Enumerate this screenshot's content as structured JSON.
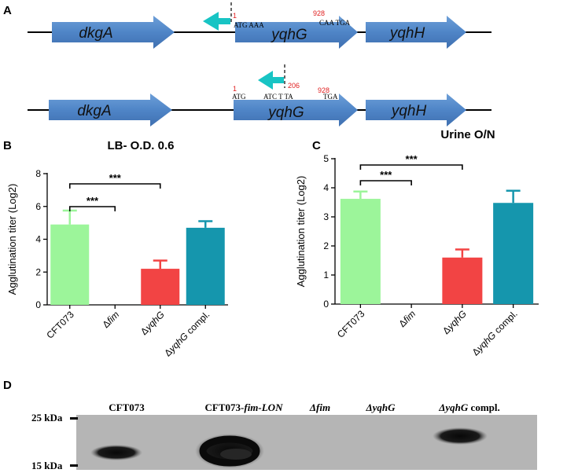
{
  "colors": {
    "gene_arrow": "#4f85c7",
    "cyan_arrow": "#18c4c4",
    "bar_cft073": "#9cf59a",
    "bar_fim": "#ffffff",
    "bar_yqhg": "#f24444",
    "bar_compl": "#1596ad",
    "site_number": "#e02020"
  },
  "panelA": {
    "label": "A",
    "genes": [
      "dkgA",
      "yqhG",
      "yqhH"
    ],
    "row1": {
      "pos_start": "1",
      "pos_end": "928",
      "seq_start": "ATG AAA",
      "seq_end": "CAA TGA"
    },
    "row2": {
      "pos_start": "1",
      "pos_mid": "206",
      "pos_end": "928",
      "seq_start": "ATG",
      "seq_mid": "ATC T TA",
      "seq_end": "TGA"
    }
  },
  "chart_data": [
    {
      "panel": "B",
      "type": "bar",
      "title": "LB- O.D. 0.6",
      "ylabel": "Agglutination titer (Log2)",
      "xlabel": "",
      "ylim": [
        0,
        8
      ],
      "yticks": [
        "0",
        "2",
        "4",
        "6",
        "8"
      ],
      "categories": [
        "CFT073",
        "Δfim",
        "ΔyqhG",
        "ΔyqhG compl."
      ],
      "values": [
        4.9,
        0,
        2.2,
        4.7
      ],
      "errors": [
        0.85,
        0,
        0.5,
        0.4
      ],
      "significance": [
        {
          "from": "CFT073",
          "to": "Δfim",
          "label": "***"
        },
        {
          "from": "CFT073",
          "to": "ΔyqhG",
          "label": "***"
        }
      ]
    },
    {
      "panel": "C",
      "type": "bar",
      "title": "Urine O/N",
      "ylabel": "Agglutination titer (Log2)",
      "xlabel": "",
      "ylim": [
        0,
        5
      ],
      "yticks": [
        "0",
        "1",
        "2",
        "3",
        "4",
        "5"
      ],
      "categories": [
        "CFT073",
        "Δfim",
        "ΔyqhG",
        "ΔyqhG compl."
      ],
      "values": [
        3.62,
        0,
        1.6,
        3.48
      ],
      "errors": [
        0.25,
        0,
        0.28,
        0.42
      ],
      "significance": [
        {
          "from": "CFT073",
          "to": "Δfim",
          "label": "***"
        },
        {
          "from": "CFT073",
          "to": "ΔyqhG",
          "label": "***"
        }
      ]
    }
  ],
  "panelD": {
    "label": "D",
    "lanes": [
      "CFT073",
      "CFT073-fim-LON",
      "Δfim",
      "ΔyqhG",
      "ΔyqhG compl."
    ],
    "markers": [
      "25 kDa",
      "15 kDa"
    ],
    "band_intensity": [
      0.8,
      1.0,
      0,
      0,
      0.85
    ]
  }
}
